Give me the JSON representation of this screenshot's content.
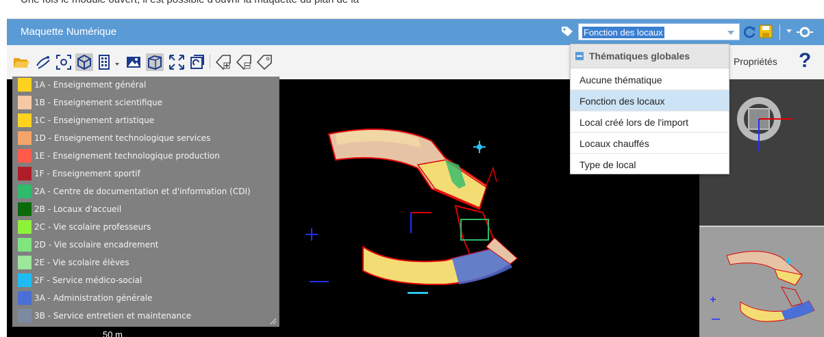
{
  "page_intro_text": "Une fois le module ouvert, il est possible d'ouvrir la maquette du plan de la",
  "header": {
    "title": "Maquette Numérique",
    "theme_select": {
      "selected": "Fonction des locaux"
    }
  },
  "toolbar": {
    "properties_label": "Propriétés",
    "help_label": "?"
  },
  "dropdown": {
    "group_label": "Thématiques globales",
    "options": [
      {
        "label": "Aucune thématique"
      },
      {
        "label": "Fonction des locaux"
      },
      {
        "label": "Local créé lors de l'import"
      },
      {
        "label": "Locaux chauffés"
      },
      {
        "label": "Type de local"
      }
    ],
    "selected_index": 1
  },
  "legend": {
    "items": [
      {
        "label": "1A - Enseignement général",
        "color": "#ffd21f"
      },
      {
        "label": "1B - Enseignement scientifique",
        "color": "#f6c9a5"
      },
      {
        "label": "1C - Enseignement artistique",
        "color": "#ffd21f"
      },
      {
        "label": "1D - Enseignement technologique services",
        "color": "#f4a46a"
      },
      {
        "label": "1E - Enseignement technologique production",
        "color": "#ff5a4a"
      },
      {
        "label": "1F - Enseignement sportif",
        "color": "#b01d28"
      },
      {
        "label": "2A - Centre de documentation et d'information (CDI)",
        "color": "#2fba6c"
      },
      {
        "label": "2B - Locaux d'accueil",
        "color": "#0b6b0b"
      },
      {
        "label": "2C - Vie scolaire professeurs",
        "color": "#8ef23a"
      },
      {
        "label": "2D - Vie scolaire encadrement",
        "color": "#7fe67f"
      },
      {
        "label": "2E - Vie scolaire élèves",
        "color": "#9ce79c"
      },
      {
        "label": "2F - Service médico-social",
        "color": "#1ebcf2"
      },
      {
        "label": "3A - Administration générale",
        "color": "#4a6fd6"
      },
      {
        "label": "3B - Service entretien et maintenance",
        "color": "#7c8aa0"
      }
    ]
  },
  "viewport": {
    "scale_label": "50 m"
  },
  "colors": {
    "header_blue": "#5b9bd5",
    "viewport_bg": "#000000",
    "legend_bg": "#808080"
  }
}
